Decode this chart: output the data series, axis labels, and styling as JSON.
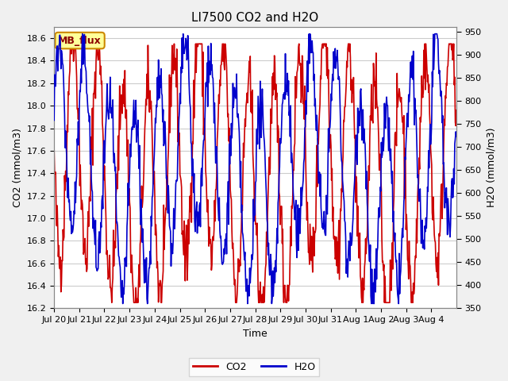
{
  "title": "LI7500 CO2 and H2O",
  "xlabel": "Time",
  "ylabel_left": "CO2 (mmol/m3)",
  "ylabel_right": "H2O (mmol/m3)",
  "co2_ylim": [
    16.2,
    18.7
  ],
  "h2o_ylim": [
    350,
    960
  ],
  "co2_yticks": [
    16.2,
    16.4,
    16.6,
    16.8,
    17.0,
    17.2,
    17.4,
    17.6,
    17.8,
    18.0,
    18.2,
    18.4,
    18.6
  ],
  "h2o_yticks": [
    350,
    400,
    450,
    500,
    550,
    600,
    650,
    700,
    750,
    800,
    850,
    900,
    950
  ],
  "xtick_labels": [
    "Jul 20",
    "Jul 21",
    "Jul 22",
    "Jul 23",
    "Jul 24",
    "Jul 25",
    "Jul 26",
    "Jul 27",
    "Jul 28",
    "Jul 29",
    "Jul 30",
    "Jul 31",
    "Aug 1",
    "Aug 2",
    "Aug 3",
    "Aug 4"
  ],
  "co2_color": "#cc0000",
  "h2o_color": "#0000cc",
  "fig_bg_color": "#f0f0f0",
  "plot_bg_color": "#ffffff",
  "grid_color": "#cccccc",
  "annotation_text": "MB_flux",
  "annotation_bg": "#ffff99",
  "annotation_border": "#cc8800",
  "linewidth": 1.2,
  "title_fontsize": 11,
  "axis_fontsize": 9,
  "tick_fontsize": 8,
  "legend_fontsize": 9
}
